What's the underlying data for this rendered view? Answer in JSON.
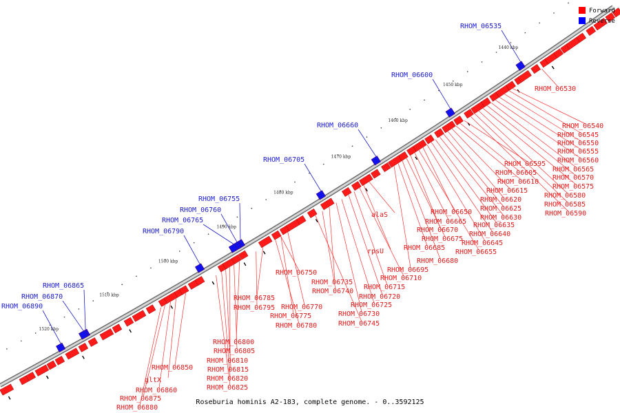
{
  "caption": "Roseburia hominis A2-183, complete genome. - 0..3592125",
  "colors": {
    "forward": "#ff0000",
    "reverse": "#0000ff",
    "label_forward": "#e01818",
    "label_reverse": "#1a1acc",
    "backbone": "#999999"
  },
  "legend": [
    {
      "label": "Forward",
      "color": "#ff0000"
    },
    {
      "label": "Reverse",
      "color": "#0000ff"
    }
  ],
  "kbp_ticks": [
    "1440 kbp",
    "1450 kbp",
    "1460 kbp",
    "1470 kbp",
    "1480 kbp",
    "1490 kbp",
    "1500 kbp",
    "1510 kbp",
    "1520 kbp"
  ],
  "reverse_genes": [
    "RHOM_06535",
    "RHOM_06600",
    "RHOM_06660",
    "RHOM_06705",
    "RHOM_06755",
    "RHOM_06760",
    "RHOM_06765",
    "RHOM_06790",
    "RHOM_06865",
    "RHOM_06870",
    "RHOM_06890"
  ],
  "forward_genes": [
    "RHOM_06530",
    "RHOM_06540",
    "RHOM_06545",
    "RHOM_06550",
    "RHOM_06555",
    "RHOM_06560",
    "RHOM_06565",
    "RHOM_06570",
    "RHOM_06575",
    "RHOM_06580",
    "RHOM_06585",
    "RHOM_06590",
    "RHOM_06595",
    "RHOM_06605",
    "RHOM_06610",
    "RHOM_06615",
    "RHOM_06620",
    "RHOM_06625",
    "RHOM_06630",
    "RHOM_06635",
    "RHOM_06640",
    "RHOM_06645",
    "RHOM_06650",
    "RHOM_06655",
    "RHOM_06665",
    "RHOM_06670",
    "RHOM_06675",
    "RHOM_06680",
    "RHOM_06685",
    "RHOM_06695",
    "alaS",
    "rpsU",
    "RHOM_06710",
    "RHOM_06715",
    "RHOM_06720",
    "RHOM_06725",
    "RHOM_06730",
    "RHOM_06735",
    "RHOM_06740",
    "RHOM_06745",
    "RHOM_06750",
    "RHOM_06770",
    "RHOM_06775",
    "RHOM_06780",
    "RHOM_06785",
    "RHOM_06795",
    "RHOM_06800",
    "RHOM_06805",
    "RHOM_06810",
    "RHOM_06815",
    "RHOM_06820",
    "RHOM_06825",
    "RHOM_06850",
    "gltX",
    "RHOM_06860",
    "RHOM_06875",
    "RHOM_06880"
  ]
}
